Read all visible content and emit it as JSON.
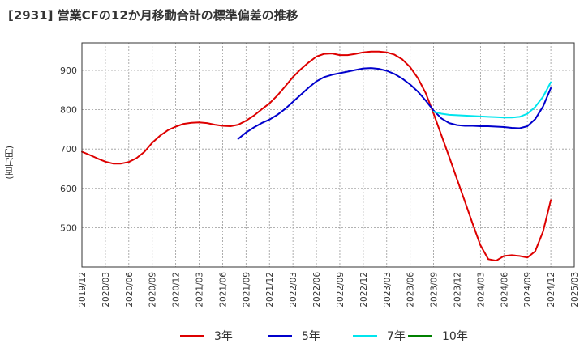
{
  "chart_data": {
    "type": "line",
    "title": "[2931]  営業CFの12か月移動合計の標準偏差の推移",
    "ylabel": "(百万円)",
    "xlabel": "",
    "ylim": [
      400,
      970
    ],
    "yticks": [
      500,
      600,
      700,
      800,
      900
    ],
    "xticks": [
      "2019/12",
      "2020/03",
      "2020/06",
      "2020/09",
      "2020/12",
      "2021/03",
      "2021/06",
      "2021/09",
      "2021/12",
      "2022/03",
      "2022/06",
      "2022/09",
      "2022/12",
      "2023/03",
      "2023/06",
      "2023/09",
      "2023/12",
      "2024/03",
      "2024/06",
      "2024/09",
      "2024/12",
      "2025/03"
    ],
    "grid": true,
    "legend": "bottom",
    "colors": {
      "3年": "#dd0000",
      "5年": "#0000cc",
      "7年": "#00e5ee",
      "10年": "#008000"
    },
    "series": [
      {
        "name": "3年",
        "color": "#dd0000",
        "x": [
          "2019/12",
          "2020/01",
          "2020/02",
          "2020/03",
          "2020/04",
          "2020/05",
          "2020/06",
          "2020/07",
          "2020/08",
          "2020/09",
          "2020/10",
          "2020/11",
          "2020/12",
          "2021/01",
          "2021/02",
          "2021/03",
          "2021/04",
          "2021/05",
          "2021/06",
          "2021/07",
          "2021/08",
          "2021/09",
          "2021/10",
          "2021/11",
          "2021/12",
          "2022/01",
          "2022/02",
          "2022/03",
          "2022/04",
          "2022/05",
          "2022/06",
          "2022/07",
          "2022/08",
          "2022/09",
          "2022/10",
          "2022/11",
          "2022/12",
          "2023/01",
          "2023/02",
          "2023/03",
          "2023/04",
          "2023/05",
          "2023/06",
          "2023/07",
          "2023/08",
          "2023/09",
          "2023/10",
          "2023/11",
          "2023/12",
          "2024/01",
          "2024/02",
          "2024/03",
          "2024/04",
          "2024/05",
          "2024/06",
          "2024/07",
          "2024/08",
          "2024/09",
          "2024/10",
          "2024/11",
          "2024/12"
        ],
        "values": [
          693,
          685,
          676,
          668,
          663,
          663,
          667,
          677,
          693,
          716,
          734,
          748,
          757,
          764,
          767,
          768,
          766,
          762,
          759,
          758,
          762,
          772,
          785,
          801,
          816,
          836,
          859,
          883,
          903,
          920,
          935,
          942,
          943,
          939,
          939,
          942,
          946,
          948,
          948,
          946,
          940,
          928,
          908,
          880,
          842,
          790,
          735,
          680,
          623,
          567,
          510,
          455,
          420,
          416,
          428,
          430,
          428,
          424,
          440,
          490,
          570
        ]
      },
      {
        "name": "5年",
        "color": "#0000cc",
        "x": [
          "2021/08",
          "2021/09",
          "2021/10",
          "2021/11",
          "2021/12",
          "2022/01",
          "2022/02",
          "2022/03",
          "2022/04",
          "2022/05",
          "2022/06",
          "2022/07",
          "2022/08",
          "2022/09",
          "2022/10",
          "2022/11",
          "2022/12",
          "2023/01",
          "2023/02",
          "2023/03",
          "2023/04",
          "2023/05",
          "2023/06",
          "2023/07",
          "2023/08",
          "2023/09",
          "2023/10",
          "2023/11",
          "2023/12",
          "2024/01",
          "2024/02",
          "2024/03",
          "2024/04",
          "2024/05",
          "2024/06",
          "2024/07",
          "2024/08",
          "2024/09",
          "2024/10",
          "2024/11",
          "2024/12"
        ],
        "values": [
          726,
          742,
          755,
          766,
          775,
          787,
          802,
          820,
          838,
          856,
          872,
          883,
          889,
          893,
          897,
          901,
          905,
          906,
          904,
          899,
          891,
          879,
          864,
          846,
          823,
          798,
          778,
          766,
          761,
          759,
          759,
          758,
          758,
          757,
          756,
          754,
          753,
          758,
          776,
          808,
          855
        ]
      },
      {
        "name": "7年",
        "color": "#00e5ee",
        "x": [
          "2023/09",
          "2023/10",
          "2023/11",
          "2023/12",
          "2024/01",
          "2024/02",
          "2024/03",
          "2024/04",
          "2024/05",
          "2024/06",
          "2024/07",
          "2024/08",
          "2024/09",
          "2024/10",
          "2024/11",
          "2024/12"
        ],
        "values": [
          795,
          790,
          787,
          786,
          785,
          784,
          783,
          782,
          781,
          780,
          780,
          782,
          790,
          807,
          833,
          870
        ]
      },
      {
        "name": "10年",
        "color": "#008000",
        "x": [],
        "values": []
      }
    ]
  }
}
